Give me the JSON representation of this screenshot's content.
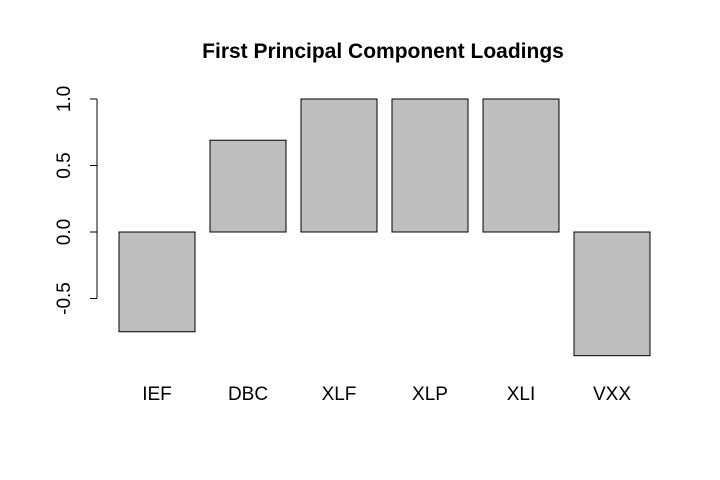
{
  "chart_data": {
    "type": "bar",
    "title": "First Principal Component Loadings",
    "xlabel": "",
    "ylabel": "",
    "categories": [
      "IEF",
      "DBC",
      "XLF",
      "XLP",
      "XLI",
      "VXX"
    ],
    "values": [
      -0.75,
      0.69,
      1.0,
      1.0,
      1.0,
      -0.93
    ],
    "yticks": [
      -0.5,
      0.0,
      0.5,
      1.0
    ],
    "ytick_labels": [
      "-0.5",
      "0.0",
      "0.5",
      "1.0"
    ],
    "ylim": [
      -0.95,
      1.0
    ],
    "grid": false,
    "legend": null,
    "colors": {
      "bar_fill": "#bebebe",
      "bar_stroke": "#000000",
      "axis": "#000000",
      "background": "#ffffff"
    }
  }
}
